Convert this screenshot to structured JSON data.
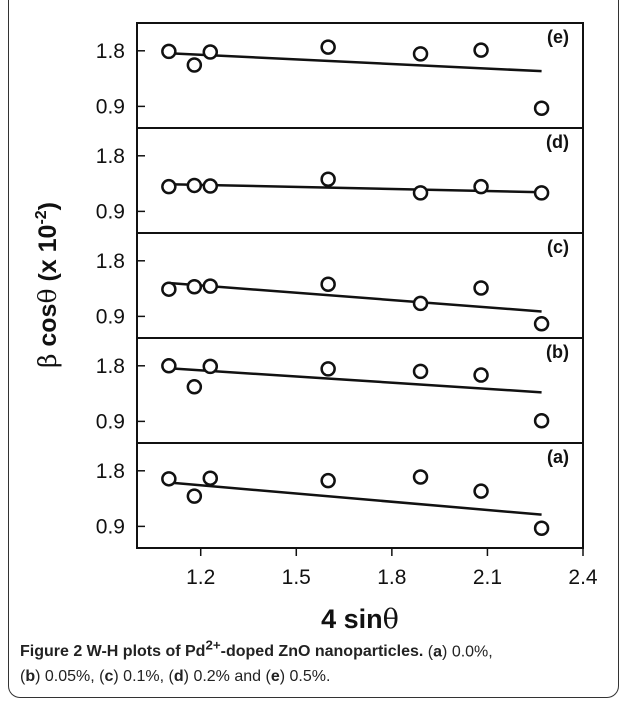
{
  "chart_data": {
    "type": "scatter",
    "xlabel_parts": [
      "4 sin",
      "θ"
    ],
    "ylabel_parts": [
      "β",
      "cos",
      "θ",
      "(x 10",
      "-2",
      ")"
    ],
    "xlim": [
      1.0,
      2.4
    ],
    "xticks": [
      "1.2",
      "1.5",
      "1.8",
      "2.1",
      "2.4"
    ],
    "xtick_values": [
      1.2,
      1.5,
      1.8,
      2.1,
      2.4
    ],
    "yticks": [
      "0.9",
      "1.8"
    ],
    "ytick_values": [
      0.9,
      1.8
    ],
    "ylim": [
      0.55,
      2.25
    ],
    "x": [
      1.1,
      1.18,
      1.23,
      1.6,
      1.89,
      2.08,
      2.27
    ],
    "panels": [
      {
        "label": "(e)",
        "y": [
          1.79,
          1.57,
          1.78,
          1.86,
          1.75,
          1.81,
          0.87
        ],
        "fit": [
          1.76,
          1.47
        ]
      },
      {
        "label": "(d)",
        "y": [
          1.3,
          1.32,
          1.31,
          1.42,
          1.2,
          1.3,
          1.2
        ],
        "fit": [
          1.34,
          1.21
        ]
      },
      {
        "label": "(c)",
        "y": [
          1.34,
          1.38,
          1.39,
          1.42,
          1.11,
          1.36,
          0.78
        ],
        "fit": [
          1.44,
          0.98
        ]
      },
      {
        "label": "(b)",
        "y": [
          1.8,
          1.46,
          1.79,
          1.75,
          1.71,
          1.65,
          0.91
        ],
        "fit": [
          1.76,
          1.37
        ]
      },
      {
        "label": "(a)",
        "y": [
          1.67,
          1.39,
          1.68,
          1.64,
          1.7,
          1.47,
          0.87
        ],
        "fit": [
          1.61,
          1.09
        ]
      }
    ]
  },
  "caption": {
    "title_pre": "Figure 2 W-H plots of Pd",
    "title_sup": "2+",
    "title_post": "-doped ZnO nanoparticles.",
    "items": [
      {
        "tag": "a",
        "text": "0.0%,"
      },
      {
        "tag": "b",
        "text": "0.05%,"
      },
      {
        "tag": "c",
        "text": "0.1%,"
      },
      {
        "tag": "d",
        "text": "0.2% and"
      },
      {
        "tag": "e",
        "text": "0.5%."
      }
    ]
  }
}
